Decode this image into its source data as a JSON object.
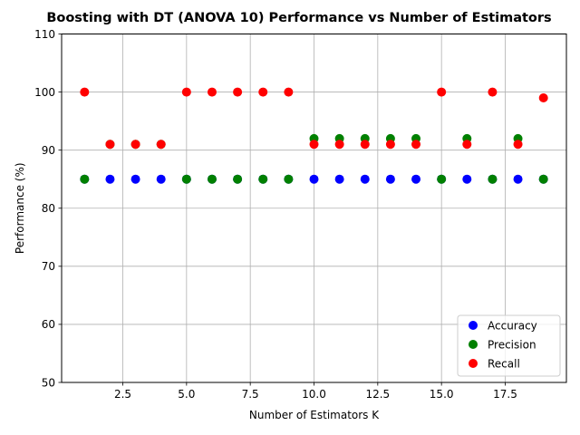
{
  "chart_data": {
    "type": "scatter",
    "title": "Boosting with DT (ANOVA 10) Performance vs Number of Estimators",
    "xlabel": "Number of Estimators K",
    "ylabel": "Performance (%)",
    "xlim": [
      0.1,
      19.9
    ],
    "ylim": [
      50,
      110
    ],
    "xticks": [
      2.5,
      5.0,
      7.5,
      10.0,
      12.5,
      15.0,
      17.5
    ],
    "xtick_labels": [
      "2.5",
      "5.0",
      "7.5",
      "10.0",
      "12.5",
      "15.0",
      "17.5"
    ],
    "yticks": [
      50,
      60,
      70,
      80,
      90,
      100,
      110
    ],
    "ytick_labels": [
      "50",
      "60",
      "70",
      "80",
      "90",
      "100",
      "110"
    ],
    "grid": true,
    "legend_position": "lower-right",
    "x": [
      1,
      2,
      3,
      4,
      5,
      6,
      7,
      8,
      9,
      10,
      11,
      12,
      13,
      14,
      15,
      16,
      17,
      18,
      19
    ],
    "series": [
      {
        "name": "Accuracy",
        "color": "#0000ff",
        "values": [
          85,
          85,
          85,
          85,
          85,
          85,
          85,
          85,
          85,
          85,
          85,
          85,
          85,
          85,
          85,
          85,
          85,
          85,
          85
        ]
      },
      {
        "name": "Precision",
        "color": "#008000",
        "values": [
          85,
          91,
          91,
          91,
          85,
          85,
          85,
          85,
          85,
          92,
          92,
          92,
          92,
          92,
          85,
          92,
          85,
          92,
          85
        ]
      },
      {
        "name": "Recall",
        "color": "#ff0000",
        "values": [
          100,
          91,
          91,
          91,
          100,
          100,
          100,
          100,
          100,
          91,
          91,
          91,
          91,
          91,
          100,
          91,
          100,
          91,
          99
        ]
      }
    ]
  }
}
